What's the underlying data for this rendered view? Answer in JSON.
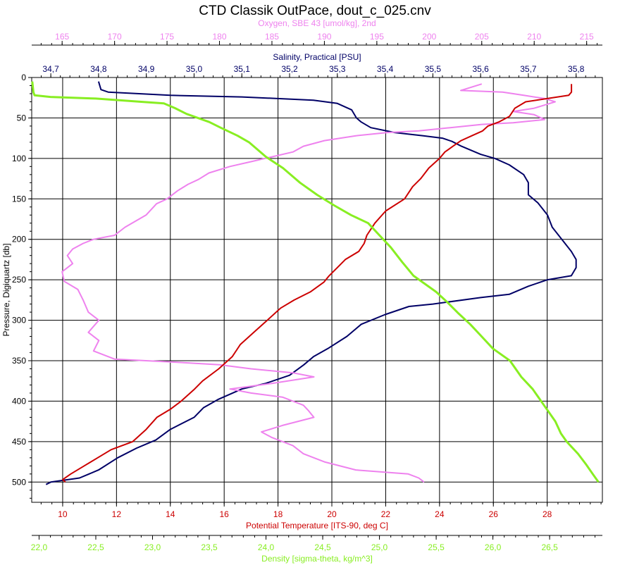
{
  "chart_data": {
    "type": "line",
    "title": "CTD Classik OutPace, dout_c_025.cnv",
    "grid": true,
    "y_axis": {
      "label": "Pressure, Digiquartz [db]",
      "range": [
        0,
        525
      ],
      "inverted": true,
      "ticks": [
        "0",
        "50",
        "100",
        "150",
        "200",
        "250",
        "300",
        "350",
        "400",
        "450",
        "500"
      ],
      "tick_values": [
        0,
        50,
        100,
        150,
        200,
        250,
        300,
        350,
        400,
        450,
        500
      ],
      "color": "#000000"
    },
    "x_axes": [
      {
        "key": "oxygen",
        "label": "Oxygen, SBE 43 [umol/kg], 2nd",
        "position": "top-outer",
        "range": [
          162.1,
          216.5
        ],
        "ticks": [
          "165",
          "170",
          "175",
          "180",
          "185",
          "190",
          "195",
          "200",
          "205",
          "210",
          "215"
        ],
        "tick_values": [
          165,
          170,
          175,
          180,
          185,
          190,
          195,
          200,
          205,
          210,
          215
        ],
        "color": "#ee82ee"
      },
      {
        "key": "salinity",
        "label": "Salinity, Practical [PSU]",
        "position": "top-inner",
        "range": [
          34.66,
          35.855
        ],
        "ticks": [
          "34,7",
          "34,8",
          "34,9",
          "35,0",
          "35,1",
          "35,2",
          "35,3",
          "35,4",
          "35,5",
          "35,6",
          "35,7",
          "35,8"
        ],
        "tick_values": [
          34.7,
          34.8,
          34.9,
          35.0,
          35.1,
          35.2,
          35.3,
          35.4,
          35.5,
          35.6,
          35.7,
          35.8
        ],
        "color": "#000066"
      },
      {
        "key": "temperature",
        "label": "Potential Temperature [ITS-90, deg C]",
        "position": "bottom-inner",
        "range": [
          8.85,
          30.05
        ],
        "ticks": [
          "10",
          "12",
          "14",
          "16",
          "18",
          "20",
          "22",
          "24",
          "26",
          "28"
        ],
        "tick_values": [
          10,
          12,
          14,
          16,
          18,
          20,
          22,
          24,
          26,
          28
        ],
        "color": "#cc0000"
      },
      {
        "key": "density",
        "label": "Density [sigma-theta, kg/m^3]",
        "position": "bottom-outer",
        "range": [
          21.935,
          26.965
        ],
        "ticks": [
          "22,0",
          "22,5",
          "23,0",
          "23,5",
          "24,0",
          "24,5",
          "25,0",
          "25,5",
          "26,0",
          "26,5"
        ],
        "tick_values": [
          22.0,
          22.5,
          23.0,
          23.5,
          24.0,
          24.5,
          25.0,
          25.5,
          26.0,
          26.5
        ],
        "color": "#88ee22"
      }
    ],
    "series": [
      {
        "key": "salinity",
        "color": "#000066",
        "points": [
          [
            34.8,
            5
          ],
          [
            34.805,
            15
          ],
          [
            34.82,
            18
          ],
          [
            34.95,
            22
          ],
          [
            35.1,
            24
          ],
          [
            35.25,
            28
          ],
          [
            35.3,
            32
          ],
          [
            35.33,
            40
          ],
          [
            35.34,
            50
          ],
          [
            35.35,
            55
          ],
          [
            35.37,
            62
          ],
          [
            35.42,
            68
          ],
          [
            35.48,
            72
          ],
          [
            35.52,
            75
          ],
          [
            35.54,
            79
          ],
          [
            35.56,
            85
          ],
          [
            35.6,
            95
          ],
          [
            35.63,
            100
          ],
          [
            35.66,
            108
          ],
          [
            35.69,
            120
          ],
          [
            35.7,
            130
          ],
          [
            35.7,
            145
          ],
          [
            35.72,
            155
          ],
          [
            35.74,
            170
          ],
          [
            35.75,
            185
          ],
          [
            35.77,
            200
          ],
          [
            35.79,
            215
          ],
          [
            35.8,
            225
          ],
          [
            35.8,
            235
          ],
          [
            35.79,
            245
          ],
          [
            35.74,
            250
          ],
          [
            35.7,
            258
          ],
          [
            35.66,
            268
          ],
          [
            35.6,
            272
          ],
          [
            35.5,
            280
          ],
          [
            35.45,
            283
          ],
          [
            35.4,
            293
          ],
          [
            35.35,
            305
          ],
          [
            35.32,
            320
          ],
          [
            35.28,
            335
          ],
          [
            35.25,
            345
          ],
          [
            35.23,
            355
          ],
          [
            35.2,
            368
          ],
          [
            35.15,
            378
          ],
          [
            35.1,
            385
          ],
          [
            35.05,
            398
          ],
          [
            35.02,
            408
          ],
          [
            35.0,
            420
          ],
          [
            34.95,
            435
          ],
          [
            34.92,
            448
          ],
          [
            34.88,
            458
          ],
          [
            34.84,
            470
          ],
          [
            34.8,
            485
          ],
          [
            34.76,
            495
          ],
          [
            34.7,
            500
          ],
          [
            34.69,
            503
          ]
        ]
      },
      {
        "key": "oxygen",
        "color": "#ee82ee",
        "points": [
          [
            205,
            8
          ],
          [
            204,
            12
          ],
          [
            203,
            16
          ],
          [
            207,
            18
          ],
          [
            209,
            22
          ],
          [
            211,
            26
          ],
          [
            212,
            30
          ],
          [
            211,
            34
          ],
          [
            210,
            38
          ],
          [
            208,
            42
          ],
          [
            210,
            46
          ],
          [
            211,
            52
          ],
          [
            208,
            56
          ],
          [
            205,
            58
          ],
          [
            202,
            62
          ],
          [
            199,
            66
          ],
          [
            196,
            68
          ],
          [
            193,
            72
          ],
          [
            190,
            78
          ],
          [
            188,
            85
          ],
          [
            187,
            92
          ],
          [
            185,
            98
          ],
          [
            183,
            104
          ],
          [
            181,
            110
          ],
          [
            179,
            118
          ],
          [
            178,
            126
          ],
          [
            177,
            132
          ],
          [
            176,
            140
          ],
          [
            175,
            150
          ],
          [
            174,
            156
          ],
          [
            173,
            170
          ],
          [
            171,
            185
          ],
          [
            170,
            195
          ],
          [
            168,
            200
          ],
          [
            167,
            205
          ],
          [
            166,
            212
          ],
          [
            165.5,
            220
          ],
          [
            166,
            230
          ],
          [
            165,
            240
          ],
          [
            165.2,
            252
          ],
          [
            166.5,
            262
          ],
          [
            167,
            275
          ],
          [
            167.5,
            290
          ],
          [
            168.5,
            300
          ],
          [
            167.5,
            315
          ],
          [
            168.5,
            325
          ],
          [
            168,
            338
          ],
          [
            170,
            348
          ],
          [
            176,
            352
          ],
          [
            180,
            355
          ],
          [
            183,
            360
          ],
          [
            187,
            365
          ],
          [
            189,
            370
          ],
          [
            185,
            378
          ],
          [
            181,
            385
          ],
          [
            183,
            390
          ],
          [
            186,
            395
          ],
          [
            188,
            405
          ],
          [
            188.5,
            412
          ],
          [
            189,
            420
          ],
          [
            186,
            430
          ],
          [
            184,
            438
          ],
          [
            185,
            445
          ],
          [
            187,
            455
          ],
          [
            188,
            465
          ],
          [
            190,
            475
          ],
          [
            193,
            485
          ],
          [
            198,
            490
          ],
          [
            199,
            495
          ],
          [
            199.5,
            500
          ]
        ]
      },
      {
        "key": "temperature",
        "color": "#cc0000",
        "points": [
          [
            28.9,
            8
          ],
          [
            28.9,
            18
          ],
          [
            28.8,
            22
          ],
          [
            28,
            26
          ],
          [
            27.2,
            30
          ],
          [
            26.8,
            38
          ],
          [
            26.6,
            48
          ],
          [
            26.2,
            55
          ],
          [
            25.8,
            60
          ],
          [
            25.6,
            66
          ],
          [
            25.2,
            72
          ],
          [
            24.8,
            78
          ],
          [
            24.5,
            85
          ],
          [
            24.2,
            92
          ],
          [
            24,
            100
          ],
          [
            23.6,
            112
          ],
          [
            23.3,
            125
          ],
          [
            23,
            135
          ],
          [
            22.7,
            150
          ],
          [
            22,
            165
          ],
          [
            21.6,
            180
          ],
          [
            21.3,
            195
          ],
          [
            21.2,
            205
          ],
          [
            21,
            215
          ],
          [
            20.5,
            225
          ],
          [
            20.2,
            235
          ],
          [
            19.9,
            245
          ],
          [
            19.7,
            253
          ],
          [
            19.2,
            265
          ],
          [
            18.6,
            275
          ],
          [
            18.1,
            285
          ],
          [
            17.6,
            300
          ],
          [
            17.1,
            315
          ],
          [
            16.6,
            330
          ],
          [
            16.3,
            345
          ],
          [
            15.8,
            360
          ],
          [
            15.2,
            375
          ],
          [
            14.9,
            385
          ],
          [
            14.4,
            400
          ],
          [
            14,
            410
          ],
          [
            13.5,
            420
          ],
          [
            13.1,
            435
          ],
          [
            12.6,
            450
          ],
          [
            11.8,
            460
          ],
          [
            11.3,
            470
          ],
          [
            10.8,
            480
          ],
          [
            10.3,
            490
          ],
          [
            10,
            497
          ],
          [
            10.1,
            500
          ]
        ]
      },
      {
        "key": "density",
        "color": "#88ee22",
        "points": [
          [
            21.94,
            5
          ],
          [
            21.95,
            18
          ],
          [
            21.96,
            22
          ],
          [
            22.1,
            24
          ],
          [
            22.5,
            26
          ],
          [
            22.9,
            30
          ],
          [
            23.1,
            32
          ],
          [
            23.2,
            38
          ],
          [
            23.3,
            45
          ],
          [
            23.5,
            55
          ],
          [
            23.6,
            62
          ],
          [
            23.75,
            72
          ],
          [
            23.85,
            80
          ],
          [
            24.0,
            98
          ],
          [
            24.15,
            112
          ],
          [
            24.3,
            130
          ],
          [
            24.45,
            145
          ],
          [
            24.6,
            158
          ],
          [
            24.75,
            170
          ],
          [
            24.9,
            180
          ],
          [
            25.0,
            195
          ],
          [
            25.1,
            210
          ],
          [
            25.2,
            228
          ],
          [
            25.3,
            245
          ],
          [
            25.4,
            255
          ],
          [
            25.5,
            265
          ],
          [
            25.6,
            278
          ],
          [
            25.7,
            292
          ],
          [
            25.8,
            305
          ],
          [
            25.9,
            320
          ],
          [
            26.0,
            335
          ],
          [
            26.15,
            350
          ],
          [
            26.25,
            370
          ],
          [
            26.35,
            385
          ],
          [
            26.45,
            405
          ],
          [
            26.55,
            425
          ],
          [
            26.6,
            440
          ],
          [
            26.65,
            450
          ],
          [
            26.75,
            465
          ],
          [
            26.82,
            478
          ],
          [
            26.88,
            490
          ],
          [
            26.93,
            500
          ]
        ]
      }
    ]
  }
}
